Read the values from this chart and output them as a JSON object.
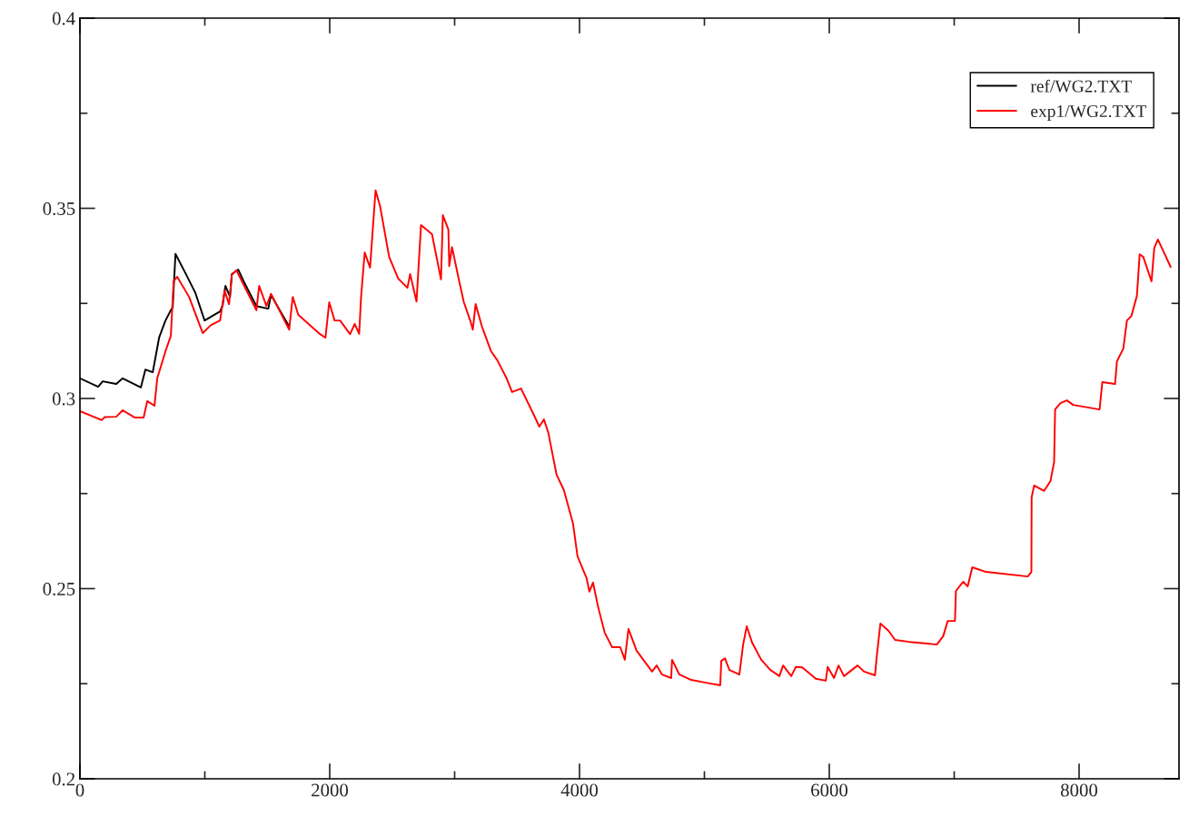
{
  "chart_data": {
    "type": "line",
    "xlim": [
      0,
      8800
    ],
    "ylim": [
      0.2,
      0.4
    ],
    "xticks": [
      0,
      {
        "value": 1000,
        "label": null
      },
      2000,
      {
        "value": 3000,
        "label": null
      },
      4000,
      {
        "value": 5000,
        "label": null
      },
      6000,
      {
        "value": 7000,
        "label": null
      },
      8000
    ],
    "yticks": [
      0.2,
      {
        "value": 0.225,
        "label": null
      },
      0.25,
      {
        "value": 0.275,
        "label": null
      },
      0.3,
      {
        "value": 0.325,
        "label": null
      },
      0.35,
      {
        "value": 0.375,
        "label": null
      },
      0.4
    ],
    "grid": false,
    "legend": "top right",
    "marker": "none",
    "line_style": "solid",
    "series": [
      {
        "name": "ref/WG2.TXT",
        "color": "#000000",
        "x": [
          0,
          146,
          182,
          291,
          342,
          488,
          524,
          583,
          634,
          685,
          728,
          743,
          765,
          852,
          925,
          998,
          1122,
          1143,
          1165,
          1202,
          1216,
          1267,
          1311,
          1413,
          1435,
          1508,
          1530,
          1675
        ],
        "values": [
          0.3053,
          0.3031,
          0.3045,
          0.3038,
          0.3053,
          0.3029,
          0.3076,
          0.3069,
          0.316,
          0.3205,
          0.3232,
          0.324,
          0.338,
          0.3325,
          0.3277,
          0.3205,
          0.3229,
          0.3245,
          0.3296,
          0.3267,
          0.3327,
          0.3339,
          0.3308,
          0.3243,
          null,
          0.3236,
          0.3272,
          0.3189
        ]
      },
      {
        "name": "exp1/WG2.TXT",
        "color": "#ff0000",
        "x": [
          0,
          175,
          197,
          291,
          342,
          437,
          510,
          539,
          597,
          619,
          685,
          728,
          750,
          779,
          874,
          983,
          1049,
          1122,
          1158,
          1194,
          1216,
          1253,
          1413,
          1435,
          1493,
          1530,
          1675,
          1704,
          1748,
          1923,
          1966,
          1996,
          2039,
          2083,
          2163,
          2200,
          2236,
          2251,
          2280,
          2323,
          2345,
          2367,
          2403,
          2476,
          2549,
          2622,
          2644,
          2695,
          2731,
          2819,
          2891,
          2906,
          2950,
          2957,
          2979,
          3037,
          3074,
          3125,
          3146,
          3168,
          3219,
          3292,
          3343,
          3416,
          3460,
          3532,
          3634,
          3678,
          3715,
          3751,
          3765,
          3816,
          3875,
          3948,
          3984,
          4057,
          4079,
          4108,
          4151,
          4202,
          4261,
          4326,
          4363,
          4392,
          4457,
          4581,
          4618,
          4661,
          4734,
          4741,
          4800,
          4894,
          5040,
          5127,
          5135,
          5164,
          5200,
          5280,
          5310,
          5339,
          5382,
          5455,
          5528,
          5601,
          5630,
          5695,
          5732,
          5783,
          5892,
          5972,
          5987,
          6038,
          6074,
          6118,
          6227,
          6278,
          6366,
          6380,
          6409,
          6475,
          6526,
          6642,
          6861,
          6912,
          6948,
          7006,
          7014,
          7072,
          7108,
          7145,
          7254,
          7589,
          7618,
          7620,
          7640,
          7720,
          7771,
          7800,
          7808,
          7851,
          7902,
          7953,
          8164,
          8186,
          8288,
          8303,
          8354,
          8383,
          8419,
          8463,
          8485,
          8514,
          8580,
          8602,
          8631,
          8733
        ],
        "values": [
          0.2967,
          0.2943,
          0.2951,
          0.2952,
          0.2969,
          0.295,
          0.295,
          0.2993,
          0.2981,
          0.3053,
          0.3124,
          0.3165,
          0.3308,
          0.332,
          0.3267,
          0.3172,
          0.3193,
          0.3205,
          0.3284,
          0.3248,
          0.3325,
          0.3337,
          0.3232,
          0.3296,
          0.3243,
          0.3275,
          0.3181,
          0.3267,
          0.322,
          0.3169,
          0.316,
          0.3253,
          0.3205,
          0.3205,
          0.3169,
          0.3196,
          0.317,
          0.3267,
          0.3384,
          0.3344,
          0.3446,
          0.3547,
          0.3506,
          0.3372,
          0.3315,
          0.3291,
          0.3327,
          0.3255,
          0.3456,
          0.3432,
          0.3313,
          0.3482,
          0.3444,
          0.3348,
          0.3398,
          0.3308,
          0.3253,
          0.3205,
          0.3181,
          0.3248,
          0.3189,
          0.3124,
          0.31,
          0.3053,
          0.3017,
          0.3026,
          0.2957,
          0.2926,
          0.2945,
          0.2909,
          0.2885,
          0.28,
          0.2759,
          0.2671,
          0.2585,
          0.2527,
          0.2492,
          0.2516,
          0.2449,
          0.2384,
          0.2346,
          0.2346,
          0.2313,
          0.2394,
          0.2337,
          0.2282,
          0.2298,
          0.2274,
          0.2265,
          0.2313,
          0.2274,
          0.226,
          0.2251,
          0.2246,
          0.231,
          0.2317,
          0.2286,
          0.2274,
          0.2353,
          0.2401,
          0.2358,
          0.2313,
          0.2286,
          0.227,
          0.2298,
          0.227,
          0.2294,
          0.2293,
          0.2263,
          0.2258,
          0.2294,
          0.2265,
          0.2298,
          0.227,
          0.2298,
          0.2282,
          0.2272,
          0.2322,
          0.2408,
          0.2389,
          0.2365,
          0.236,
          0.2353,
          0.2375,
          0.2415,
          0.2415,
          0.2494,
          0.2518,
          0.2506,
          0.2556,
          0.2544,
          0.2532,
          0.2544,
          0.274,
          0.2771,
          0.2757,
          0.2783,
          0.2833,
          0.2971,
          0.2988,
          0.2995,
          0.2983,
          0.2971,
          0.3043,
          0.3038,
          0.3098,
          0.3131,
          0.3205,
          0.3217,
          0.327,
          0.3379,
          0.3372,
          0.3308,
          0.3396,
          0.3418,
          0.3346
        ]
      }
    ]
  }
}
